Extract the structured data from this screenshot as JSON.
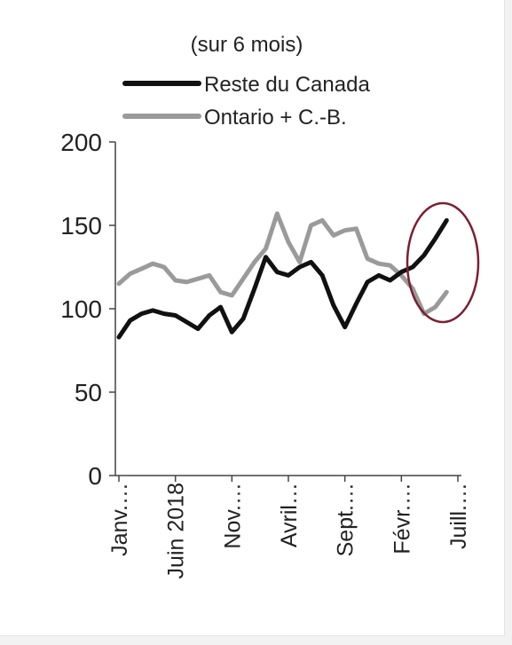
{
  "chart_data": {
    "type": "line",
    "title": "",
    "subtitle": "(sur 6 mois)",
    "xlabel": "",
    "ylabel": "",
    "ylim": [
      0,
      200
    ],
    "y_ticks": [
      0,
      50,
      100,
      150,
      200
    ],
    "x_tick_labels": [
      "Janv.…",
      "Juin 2018",
      "Nov.…",
      "Avril…",
      "Sept.…",
      "Févr.…",
      "Juill.…"
    ],
    "x_tick_dates": [
      "2018-01",
      "2018-06",
      "2018-11",
      "2019-04",
      "2019-09",
      "2020-02",
      "2020-07"
    ],
    "x": [
      "2018-01",
      "2018-02",
      "2018-03",
      "2018-04",
      "2018-05",
      "2018-06",
      "2018-07",
      "2018-08",
      "2018-09",
      "2018-10",
      "2018-11",
      "2018-12",
      "2019-01",
      "2019-02",
      "2019-03",
      "2019-04",
      "2019-05",
      "2019-06",
      "2019-07",
      "2019-08",
      "2019-09",
      "2019-10",
      "2019-11",
      "2019-12",
      "2020-01",
      "2020-02",
      "2020-03",
      "2020-04",
      "2020-05",
      "2020-06",
      "2020-07"
    ],
    "legend_position": "top",
    "grid": false,
    "series": [
      {
        "name": "Reste du Canada",
        "color": "#111111",
        "values": [
          83,
          93,
          97,
          99,
          97,
          96,
          92,
          88,
          96,
          101,
          86,
          94,
          112,
          131,
          122,
          120,
          125,
          128,
          120,
          102,
          89,
          103,
          116,
          120,
          117,
          122,
          125,
          132,
          142,
          153,
          null
        ]
      },
      {
        "name": "Ontario + C.-B.",
        "color": "#9a9a9a",
        "values": [
          115,
          121,
          124,
          127,
          125,
          117,
          116,
          118,
          120,
          110,
          108,
          118,
          128,
          136,
          157,
          140,
          128,
          150,
          153,
          144,
          147,
          148,
          130,
          127,
          126,
          120,
          112,
          97,
          101,
          110,
          null
        ]
      }
    ],
    "annotation": {
      "type": "ellipse",
      "color": "#7b1f32",
      "around": "Févr.… to Juill.… (2020)"
    }
  }
}
